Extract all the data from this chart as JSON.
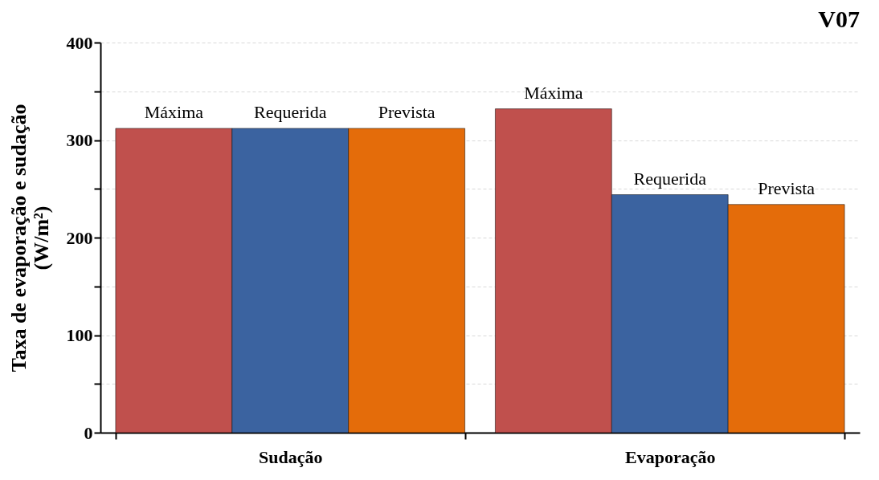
{
  "chart_data": {
    "type": "bar",
    "title": "V07",
    "categories": [
      "Sudação",
      "Evaporação"
    ],
    "ylabel": "Taxa de evaporação e sudação (W/m²)",
    "series": [
      {
        "name": "Máxima",
        "color": "#c0504d",
        "values": [
          312,
          332
        ]
      },
      {
        "name": "Requerida",
        "color": "#3b63a0",
        "values": [
          312,
          244
        ]
      },
      {
        "name": "Prevista",
        "color": "#e46c0a",
        "values": [
          312,
          234
        ]
      }
    ],
    "ylim": [
      0,
      400
    ],
    "yticks": [
      0,
      {
        "value": 50,
        "label": null
      },
      100,
      {
        "value": 150,
        "label": null
      },
      200,
      {
        "value": 250,
        "label": null
      },
      300,
      {
        "value": 350,
        "label": null
      },
      400
    ],
    "grid": "y",
    "legend": false
  }
}
